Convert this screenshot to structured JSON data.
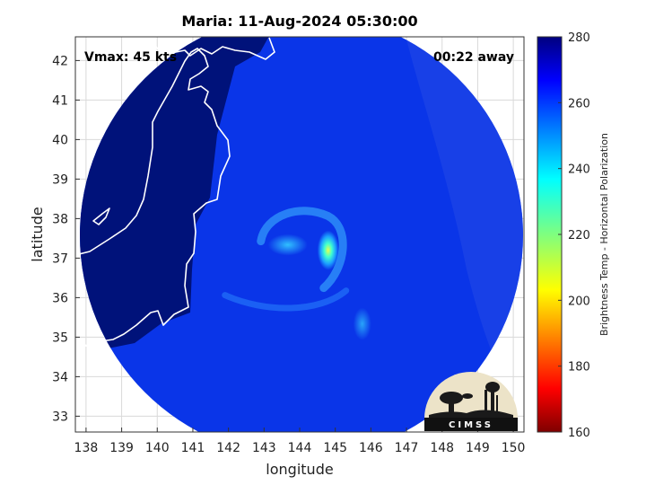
{
  "chart_data": {
    "type": "heatmap",
    "title": "Maria: 11-Aug-2024 05:30:00",
    "xlabel": "longitude",
    "ylabel": "latitude",
    "xlim": [
      137.7,
      150.3
    ],
    "ylim": [
      32.6,
      42.6
    ],
    "x_ticks": [
      138,
      139,
      140,
      141,
      142,
      143,
      144,
      145,
      146,
      147,
      148,
      149,
      150
    ],
    "y_ticks": [
      33,
      34,
      35,
      36,
      37,
      38,
      39,
      40,
      41,
      42
    ],
    "grid": true,
    "annotations": {
      "vmax": "Vmax: 45 kts",
      "time_offset": "00:22 away"
    },
    "storm_center": {
      "lon": 144.8,
      "lat": 37.2
    },
    "colorbar": {
      "label": "Brightness Temp - Horizontal Polarization",
      "range": [
        160,
        280
      ],
      "ticks": [
        160,
        180,
        200,
        220,
        240,
        260,
        280
      ],
      "colormap": "jet"
    },
    "logo_text": "CIMSS"
  },
  "colors": {
    "land": "#00127a",
    "ocean_base": "#0a35e8",
    "coastline": "#ffffff",
    "grid": "#d9d9d9"
  }
}
